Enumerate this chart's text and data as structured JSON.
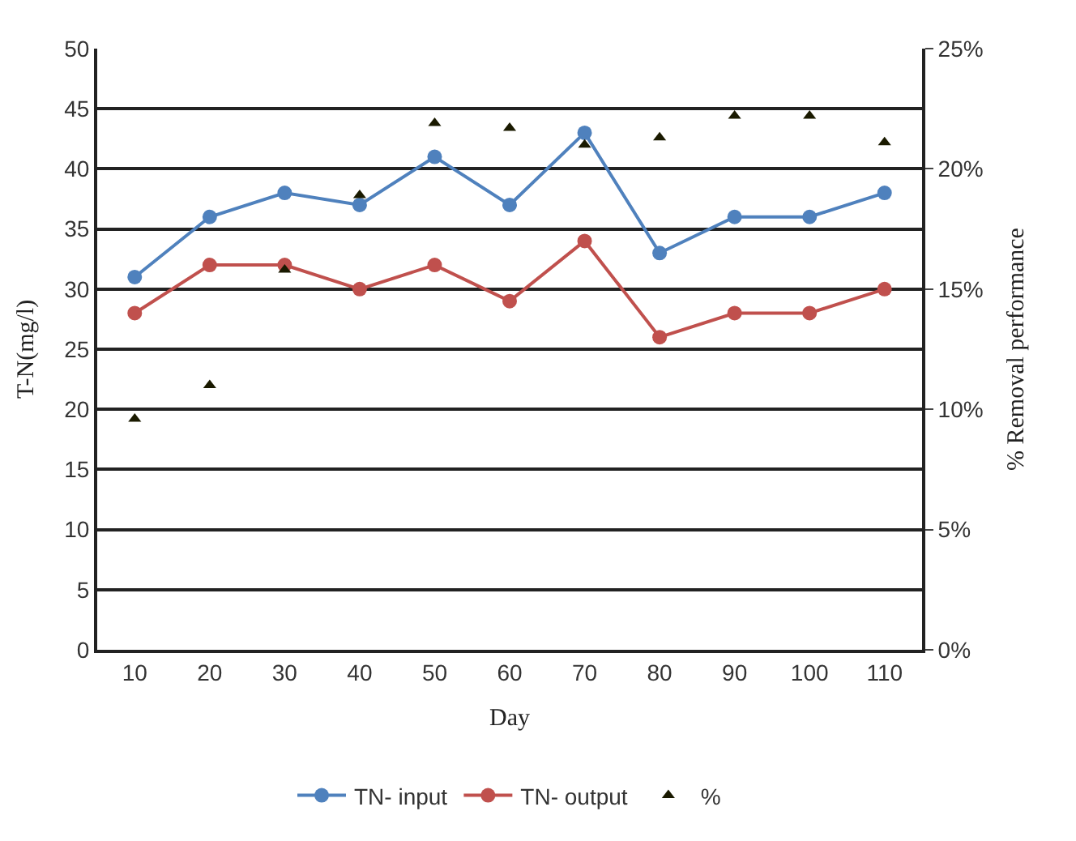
{
  "chart_data": {
    "type": "line",
    "xlabel": "Day",
    "ylabel": "T-N(mg/l)",
    "y2label": "% Removal performance",
    "categories": [
      "10",
      "20",
      "30",
      "40",
      "50",
      "60",
      "70",
      "80",
      "90",
      "100",
      "110"
    ],
    "series": [
      {
        "name": "TN- input",
        "color": "#4f81bd",
        "marker": "circle",
        "values": [
          31,
          36,
          38,
          37,
          41,
          37,
          43,
          33,
          36,
          36,
          38
        ]
      },
      {
        "name": "TN- output",
        "color": "#c0504d",
        "marker": "circle",
        "values": [
          28,
          32,
          32,
          30,
          32,
          29,
          34,
          26,
          28,
          28,
          30
        ]
      },
      {
        "name": "%",
        "type": "scatter",
        "axis": "y2",
        "color": "#1a1a00",
        "marker": "triangle",
        "values": [
          9.6,
          11,
          15.8,
          18.9,
          21.9,
          21.7,
          21,
          21.3,
          22.2,
          22.2,
          21.1
        ]
      }
    ],
    "ylim": [
      0,
      50
    ],
    "yticks": [
      0,
      5,
      10,
      15,
      20,
      25,
      30,
      35,
      40,
      45,
      50
    ],
    "y2lim": [
      0,
      25
    ],
    "y2ticks": [
      {
        "value": 0,
        "label": "0%"
      },
      {
        "value": 5,
        "label": "5%"
      },
      {
        "value": 10,
        "label": "10%"
      },
      {
        "value": 15,
        "label": "15%"
      },
      {
        "value": 20,
        "label": "20%"
      },
      {
        "value": 25,
        "label": "25%"
      }
    ],
    "grid": "y",
    "legend": "bottom"
  }
}
